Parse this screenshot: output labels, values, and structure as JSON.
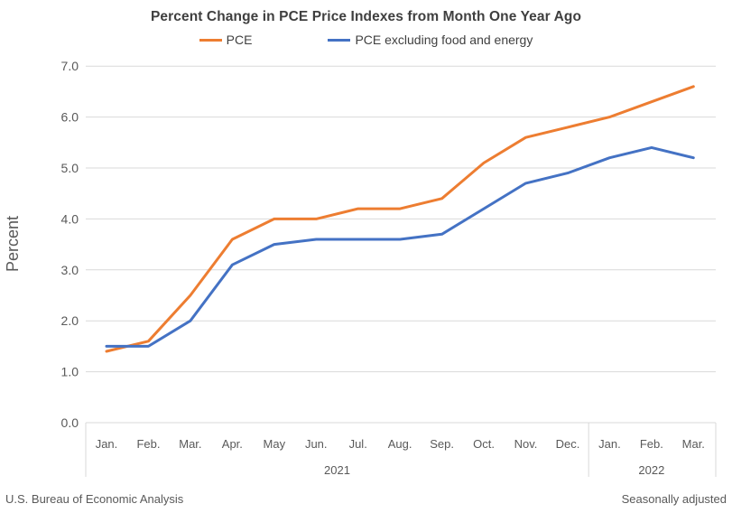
{
  "title": "Percent Change in PCE Price Indexes from Month One Year Ago",
  "footer": {
    "source": "U.S. Bureau of Economic Analysis",
    "note": "Seasonally adjusted"
  },
  "colors": {
    "pce": "#ED7D31",
    "core_pce": "#4472C4",
    "gridline": "#D9D9D9",
    "axis_box": "#D9D9D9",
    "tick_text": "#595959",
    "title_text": "#3f3f3f"
  },
  "chart_data": {
    "type": "line",
    "title": "Percent Change in PCE Price Indexes from Month One Year Ago",
    "categories": [
      "Jan.",
      "Feb.",
      "Mar.",
      "Apr.",
      "May",
      "Jun.",
      "Jul.",
      "Aug.",
      "Sep.",
      "Oct.",
      "Nov.",
      "Dec.",
      "Jan.",
      "Feb.",
      "Mar."
    ],
    "year_groups": [
      {
        "label": "2021",
        "start": 0,
        "end": 11
      },
      {
        "label": "2022",
        "start": 12,
        "end": 14
      }
    ],
    "series": [
      {
        "name": "PCE",
        "color": "#ED7D31",
        "values": [
          1.4,
          1.6,
          2.5,
          3.6,
          4.0,
          4.0,
          4.2,
          4.2,
          4.4,
          5.1,
          5.6,
          5.8,
          6.0,
          6.3,
          6.6
        ]
      },
      {
        "name": "PCE excluding food and energy",
        "color": "#4472C4",
        "values": [
          1.5,
          1.5,
          2.0,
          3.1,
          3.5,
          3.6,
          3.6,
          3.6,
          3.7,
          4.2,
          4.7,
          4.9,
          5.2,
          5.4,
          5.2
        ]
      }
    ],
    "xlabel": "",
    "ylabel": "Percent",
    "ylim": [
      0.0,
      7.0
    ],
    "ytick_step": 1.0,
    "ytick_labels": [
      "0.0",
      "1.0",
      "2.0",
      "3.0",
      "4.0",
      "5.0",
      "6.0",
      "7.0"
    ],
    "grid": true,
    "legend_position": "top"
  }
}
